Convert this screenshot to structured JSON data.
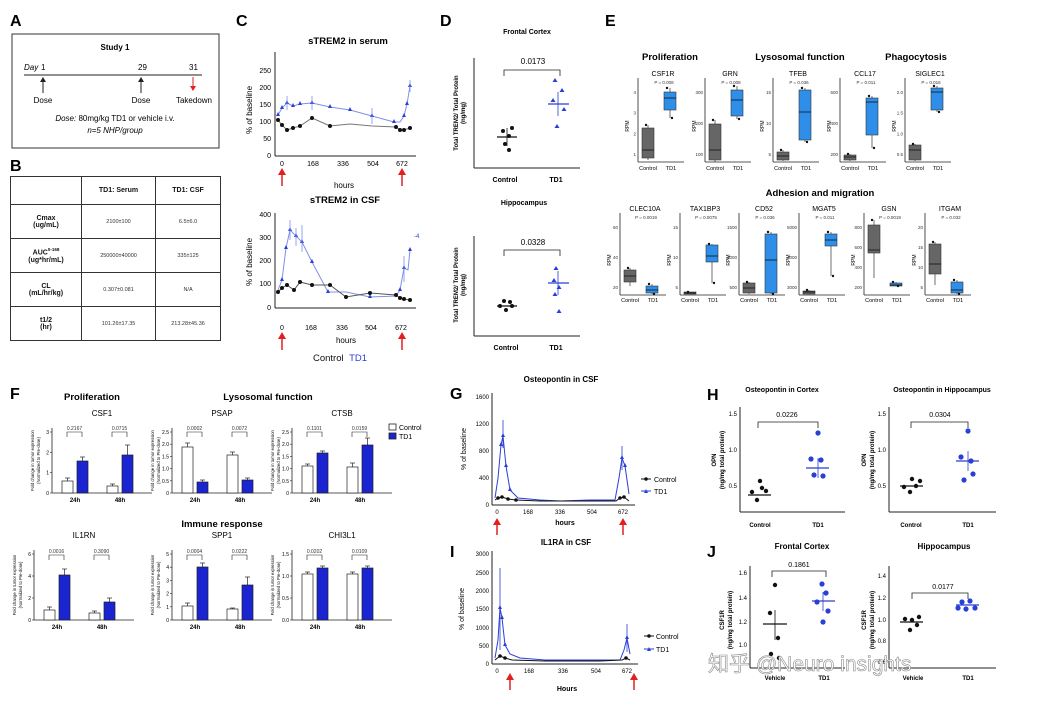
{
  "panel_letters": {
    "A": "A",
    "B": "B",
    "C": "C",
    "D": "D",
    "E": "E",
    "F": "F",
    "G": "G",
    "H": "H",
    "I": "I",
    "J": "J"
  },
  "panelA": {
    "title": "Study 1",
    "day_label": "Day",
    "days": [
      "1",
      "29",
      "31"
    ],
    "events": [
      "Dose",
      "Dose",
      "Takedown"
    ],
    "dose_line_prefix": "Dose:",
    "dose_line_text": " 80mg/kg TD1 or vehicle i.v.",
    "group_line": "n=5 NHP/group"
  },
  "panelB": {
    "headers": [
      "",
      "TD1: Serum",
      "TD1: CSF"
    ],
    "rows": [
      {
        "name": "Cmax",
        "unit": "(ug/mL)",
        "serum": "2100±100",
        "csf": "6.5±6.0"
      },
      {
        "name": "AUC",
        "sup": "0-168",
        "unit": "(ug*hr/mL)",
        "serum": "250000±40000",
        "csf": "335±125"
      },
      {
        "name": "CL",
        "unit": "(mL/hr/kg)",
        "serum": "0.307±0.081",
        "csf": "N/A"
      },
      {
        "name": "t1/2",
        "unit": "(hr)",
        "serum": "101.26±17.35",
        "csf": "213.28±45.36"
      }
    ]
  },
  "panelC": {
    "title_serum": "sTREM2 in serum",
    "title_csf": "sTREM2 in CSF",
    "ylabel": "% of baseline",
    "xlabel": "hours",
    "xticks": [
      "0",
      "168",
      "336",
      "504",
      "672"
    ],
    "yticks_serum": [
      "0",
      "50",
      "100",
      "150",
      "200",
      "250"
    ],
    "yticks_csf": [
      "0",
      "100",
      "200",
      "300",
      "400"
    ],
    "legend_control": "Control",
    "legend_td1": "TD1"
  },
  "panelD": {
    "title_fc": "Frontal Cortex",
    "title_hc": "Hippocampus",
    "ylabel": "Total TREM2/ Total Protein",
    "yunit": "(ng/mg)",
    "p_fc": "0.0173",
    "p_hc": "0.0328",
    "categories": [
      "Control",
      "TD1"
    ]
  },
  "panelE": {
    "groups_top": [
      "Proliferation",
      "Lysosomal function",
      "Phagocytosis"
    ],
    "group_bottom": "Adhesion and migration",
    "ylabel": "RPM",
    "categories": [
      "Control",
      "TD1"
    ],
    "genes_top": [
      {
        "gene": "CSF1R",
        "p": "P = 0.008"
      },
      {
        "gene": "GRN",
        "p": "P = 0.008"
      },
      {
        "gene": "TFEB",
        "p": "P = 0.036"
      },
      {
        "gene": "CCL17",
        "p": "P = 0.011"
      },
      {
        "gene": "SIGLEC1",
        "p": "P = 0.016"
      }
    ],
    "genes_bottom": [
      {
        "gene": "CLEC10A",
        "p": "P = 0.0019"
      },
      {
        "gene": "TAX1BP3",
        "p": "P = 0.0075"
      },
      {
        "gene": "CD52",
        "p": "P = 0.036"
      },
      {
        "gene": "MGAT5",
        "p": "P = 0.011"
      },
      {
        "gene": "GSN",
        "p": "P = 0.0019"
      },
      {
        "gene": "ITGAM",
        "p": "P = 0.032"
      }
    ]
  },
  "panelF": {
    "group_prolif": "Proliferation",
    "group_lyso": "Lysosomal function",
    "group_immune": "Immune response",
    "ylabel1": "Fold change in tumor expression",
    "ylabel2": "(Normalized to Pre-dose)",
    "xcats": [
      "24h",
      "48h"
    ],
    "legend": [
      "Control",
      "TD1"
    ],
    "genes": [
      {
        "gene": "CSF1",
        "p24": "0.2167",
        "p48": "0.0715"
      },
      {
        "gene": "PSAP",
        "p24": "0.0002",
        "p48": "0.0072"
      },
      {
        "gene": "CTSB",
        "p24": "0.1101",
        "p48": "0.0159"
      },
      {
        "gene": "IL1RN",
        "p24": "0.0016",
        "p48": "0.3090"
      },
      {
        "gene": "SPP1",
        "p24": "0.0004",
        "p48": "0.0222"
      },
      {
        "gene": "CHI3L1",
        "p24": "0.0202",
        "p48": "0.0109"
      }
    ]
  },
  "panelG": {
    "title": "Osteopontin in CSF",
    "ylabel": "% of baseline",
    "xlabel": "hours",
    "yticks": [
      "0",
      "400",
      "800",
      "1200",
      "1600"
    ],
    "xticks": [
      "0",
      "168",
      "336",
      "504",
      "672"
    ],
    "legend": [
      "Control",
      "TD1"
    ]
  },
  "panelH": {
    "title_cortex": "Osteopontin in Cortex",
    "title_hippo": "Osteopontin in Hippocampus",
    "ylabel1": "OPN",
    "ylabel2": "(ng/mg total protein)",
    "p_cortex": "0.0226",
    "p_hippo": "0.0304",
    "categories": [
      "Control",
      "TD1"
    ],
    "yticks": [
      "0.5",
      "1.0",
      "1.5"
    ]
  },
  "panelI": {
    "title": "IL1RA in CSF",
    "ylabel": "% of baseline",
    "xlabel": "Hours",
    "yticks": [
      "0",
      "500",
      "1000",
      "1500",
      "2000",
      "2500",
      "3000"
    ],
    "xticks": [
      "0",
      "168",
      "336",
      "504",
      "672"
    ],
    "legend": [
      "Control",
      "TD1"
    ]
  },
  "panelJ": {
    "title_fc": "Frontal Cortex",
    "title_hc": "Hippocampus",
    "ylabel1": "CSF1R",
    "ylabel2": "(ng/mg total protein)",
    "p_fc": "0.1861",
    "p_hc": "0.0177",
    "categories_fc": [
      "Vehicle",
      "TD1"
    ],
    "categories_hc": [
      "Vehicle",
      "TD1"
    ],
    "yticks_fc": [
      "1.0",
      "1.2",
      "1.4",
      "1.6"
    ],
    "yticks_hc": [
      "0.6",
      "0.8",
      "1.0",
      "1.2",
      "1.4"
    ]
  },
  "watermark": "知乎 @Neuro insights",
  "colors": {
    "td1": "#2a3fd6",
    "td1_light": "#7d8ce8",
    "control": "#111111",
    "ebox": "#2f8fe8",
    "cbox": "#666666",
    "bar_td1": "#1a24d0",
    "arrow": "#e02020"
  }
}
